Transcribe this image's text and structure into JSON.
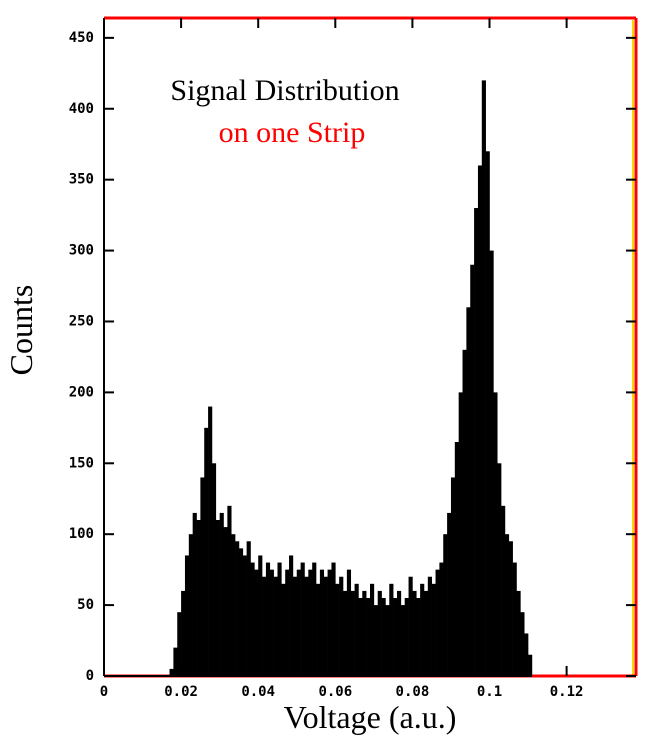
{
  "chart_data": {
    "type": "histogram",
    "title": "Signal Distribution",
    "subtitle": "on one Strip",
    "xlabel": "Voltage (a.u.)",
    "ylabel": "Counts",
    "color": "#000000",
    "subtitle_color": "#ff0000",
    "frame_color": "#ff0000",
    "bins": [
      0.017,
      0.018,
      0.019,
      0.02,
      0.021,
      0.022,
      0.023,
      0.024,
      0.025,
      0.026,
      0.027,
      0.028,
      0.029,
      0.03,
      0.031,
      0.032,
      0.033,
      0.034,
      0.035,
      0.036,
      0.037,
      0.038,
      0.039,
      0.04,
      0.041,
      0.042,
      0.043,
      0.044,
      0.045,
      0.046,
      0.047,
      0.048,
      0.049,
      0.05,
      0.051,
      0.052,
      0.053,
      0.054,
      0.055,
      0.056,
      0.057,
      0.058,
      0.059,
      0.06,
      0.061,
      0.062,
      0.063,
      0.064,
      0.065,
      0.066,
      0.067,
      0.068,
      0.069,
      0.07,
      0.071,
      0.072,
      0.073,
      0.074,
      0.075,
      0.076,
      0.077,
      0.078,
      0.079,
      0.08,
      0.081,
      0.082,
      0.083,
      0.084,
      0.085,
      0.086,
      0.087,
      0.088,
      0.089,
      0.09,
      0.091,
      0.092,
      0.093,
      0.094,
      0.095,
      0.096,
      0.097,
      0.098,
      0.099,
      0.1,
      0.101,
      0.102,
      0.103,
      0.104,
      0.105,
      0.106,
      0.107,
      0.108,
      0.109,
      0.11,
      0.111
    ],
    "values": [
      5,
      20,
      45,
      60,
      85,
      100,
      115,
      110,
      140,
      175,
      190,
      150,
      110,
      115,
      105,
      120,
      100,
      95,
      90,
      85,
      95,
      80,
      75,
      85,
      70,
      80,
      75,
      70,
      80,
      65,
      75,
      85,
      70,
      75,
      80,
      70,
      75,
      80,
      65,
      75,
      70,
      75,
      80,
      65,
      70,
      60,
      75,
      60,
      65,
      55,
      60,
      55,
      65,
      50,
      60,
      55,
      50,
      65,
      55,
      60,
      50,
      55,
      70,
      60,
      55,
      65,
      60,
      70,
      65,
      75,
      80,
      100,
      115,
      140,
      165,
      200,
      230,
      260,
      290,
      330,
      360,
      420,
      370,
      300,
      200,
      150,
      120,
      100,
      95,
      80,
      60,
      45,
      30,
      15
    ],
    "xlim": [
      0,
      0.138
    ],
    "ylim": [
      0,
      464
    ],
    "xticks": [
      0,
      0.02,
      0.04,
      0.06,
      0.08,
      0.1,
      0.12
    ],
    "yticks": [
      0,
      50,
      100,
      150,
      200,
      250,
      300,
      350,
      400,
      450
    ]
  }
}
